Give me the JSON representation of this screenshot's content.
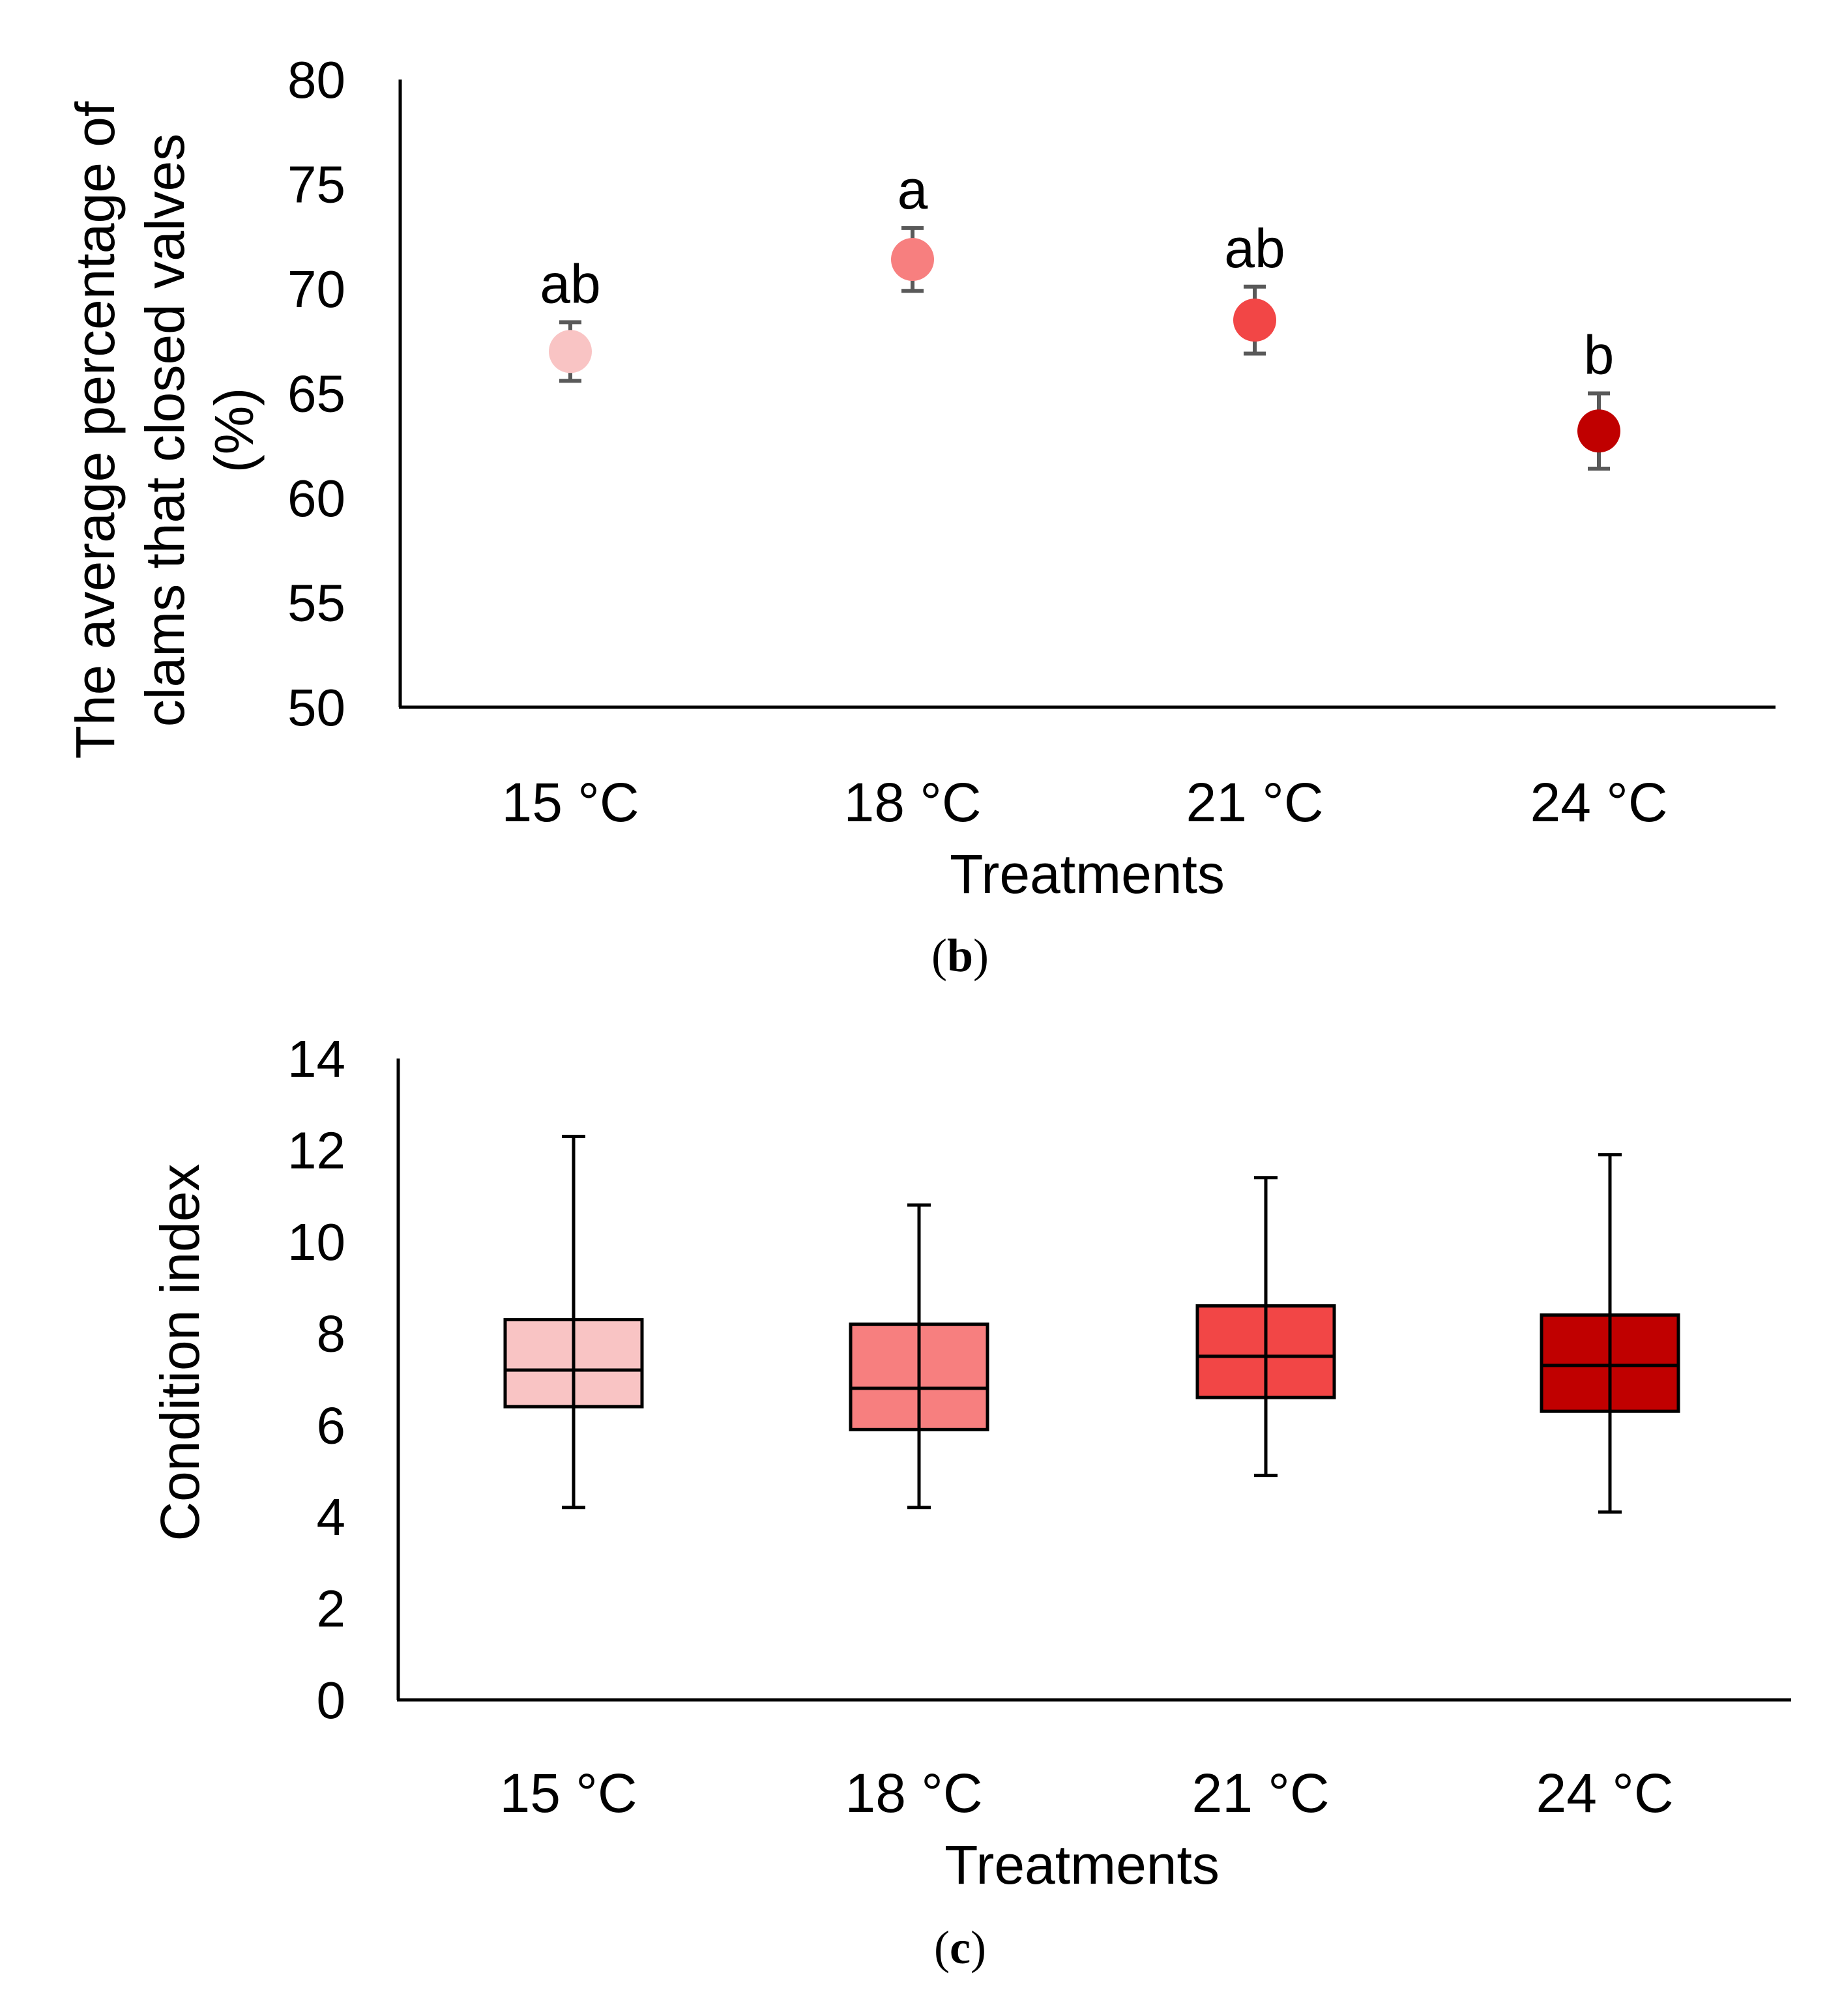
{
  "chart_data": [
    {
      "type": "scatter",
      "panel_label": "b",
      "categories": [
        "15 °C",
        "18 °C",
        "21 °C",
        "24 °C"
      ],
      "values": [
        67.0,
        71.4,
        68.5,
        63.2
      ],
      "error": [
        1.4,
        1.5,
        1.6,
        1.8
      ],
      "significance_letters": [
        "ab",
        "a",
        "ab",
        "b"
      ],
      "colors": [
        "#F9C4C4",
        "#F77F7F",
        "#F24646",
        "#C00000"
      ],
      "ylabel_lines": [
        "The average percentage of",
        "clams that closed valves",
        "(%)"
      ],
      "xlabel": "Treatments",
      "ylim": [
        50,
        80
      ],
      "yticks": [
        50,
        55,
        60,
        65,
        70,
        75,
        80
      ]
    },
    {
      "type": "box",
      "panel_label": "c",
      "categories": [
        "15 °C",
        "18 °C",
        "21 °C",
        "24 °C"
      ],
      "boxes": [
        {
          "min": 4.2,
          "q1": 6.4,
          "median": 7.2,
          "q3": 8.3,
          "max": 12.3
        },
        {
          "min": 4.2,
          "q1": 5.9,
          "median": 6.8,
          "q3": 8.2,
          "max": 10.8
        },
        {
          "min": 4.9,
          "q1": 6.6,
          "median": 7.5,
          "q3": 8.6,
          "max": 11.4
        },
        {
          "min": 4.1,
          "q1": 6.3,
          "median": 7.3,
          "q3": 8.4,
          "max": 11.9
        }
      ],
      "colors": [
        "#F9C4C4",
        "#F77F7F",
        "#F24646",
        "#C00000"
      ],
      "ylabel": "Condition index",
      "xlabel": "Treatments",
      "ylim": [
        0,
        14
      ],
      "yticks": [
        0,
        2,
        4,
        6,
        8,
        10,
        12,
        14
      ]
    }
  ]
}
